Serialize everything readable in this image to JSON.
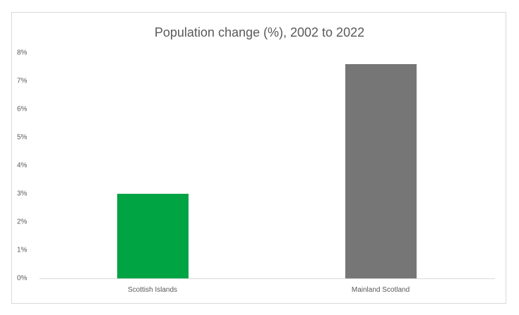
{
  "chart_data": {
    "type": "bar",
    "title": "Population change (%), 2002 to 2022",
    "categories": [
      "Scottish Islands",
      "Mainland Scotland"
    ],
    "values": [
      3.0,
      7.6
    ],
    "colors": [
      "#00A443",
      "#767676"
    ],
    "xlabel": "",
    "ylabel": "",
    "ylim": [
      0,
      8
    ],
    "yticks": [
      "0%",
      "1%",
      "2%",
      "3%",
      "4%",
      "5%",
      "6%",
      "7%",
      "8%"
    ],
    "grid": false,
    "legend": "none"
  }
}
